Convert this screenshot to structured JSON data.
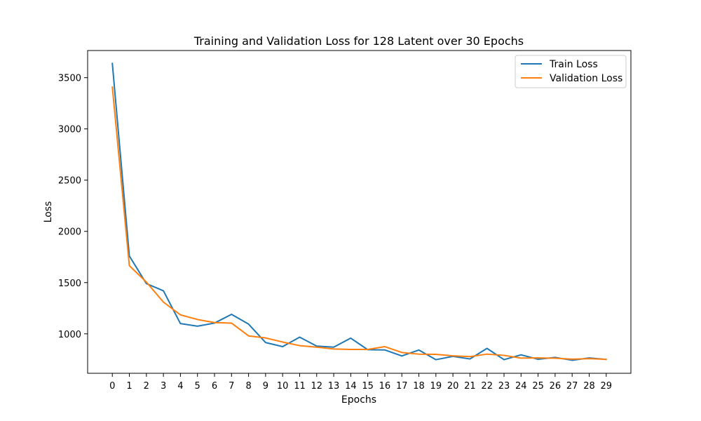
{
  "chart_data": {
    "type": "line",
    "title": "Training and Validation Loss for 128 Latent over 30 Epochs",
    "xlabel": "Epochs",
    "ylabel": "Loss",
    "x": [
      0,
      1,
      2,
      3,
      4,
      5,
      6,
      7,
      8,
      9,
      10,
      11,
      12,
      13,
      14,
      15,
      16,
      17,
      18,
      19,
      20,
      21,
      22,
      23,
      24,
      25,
      26,
      27,
      28,
      29
    ],
    "xticks": [
      "0",
      "1",
      "2",
      "3",
      "4",
      "5",
      "6",
      "7",
      "8",
      "9",
      "10",
      "11",
      "12",
      "13",
      "14",
      "15",
      "16",
      "17",
      "18",
      "19",
      "20",
      "21",
      "22",
      "23",
      "24",
      "25",
      "26",
      "27",
      "28",
      "29"
    ],
    "yticks": [
      1000,
      1500,
      2000,
      2500,
      3000,
      3500
    ],
    "ytick_labels": [
      "1000",
      "1500",
      "2000",
      "2500",
      "3000",
      "3500"
    ],
    "xlim": [
      -1.45,
      30.45
    ],
    "ylim": [
      615,
      3765
    ],
    "grid": false,
    "legend_position": "top-right",
    "series": [
      {
        "name": "Train Loss",
        "color": "#1f77b4",
        "values": [
          3640,
          1760,
          1490,
          1420,
          1100,
          1075,
          1105,
          1190,
          1095,
          915,
          875,
          968,
          880,
          870,
          958,
          845,
          843,
          784,
          842,
          748,
          780,
          755,
          858,
          748,
          795,
          752,
          770,
          742,
          765,
          750
        ]
      },
      {
        "name": "Validation Loss",
        "color": "#ff7f0e",
        "values": [
          3410,
          1665,
          1505,
          1310,
          1185,
          1140,
          1110,
          1105,
          980,
          960,
          920,
          885,
          870,
          852,
          848,
          848,
          875,
          818,
          802,
          800,
          785,
          778,
          802,
          790,
          763,
          765,
          762,
          753,
          758,
          751
        ]
      }
    ]
  }
}
